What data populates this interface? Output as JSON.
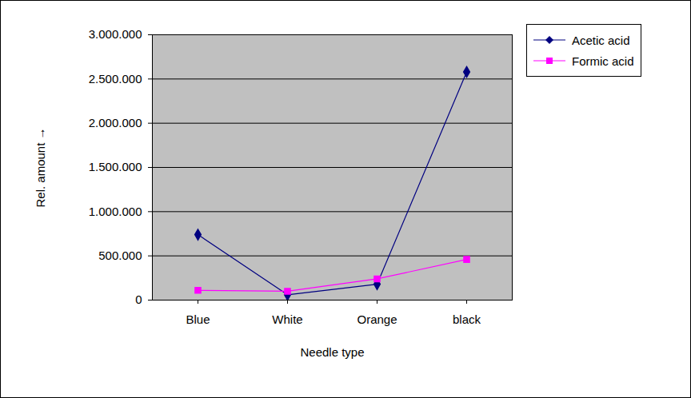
{
  "chart_data": {
    "type": "line",
    "x_label": "Needle type",
    "y_label": "Rel. amount",
    "categories": [
      "Blue",
      "White",
      "Orange",
      "black"
    ],
    "series": [
      {
        "name": "Acetic acid",
        "color": "#000080",
        "marker": "diamond",
        "values": [
          740000,
          60000,
          180000,
          2580000
        ]
      },
      {
        "name": "Formic acid",
        "color": "#ff00ff",
        "marker": "square",
        "values": [
          110000,
          100000,
          240000,
          460000
        ]
      }
    ],
    "ylim": [
      0,
      3000000
    ],
    "yticks": [
      0,
      {
        "value": 500000,
        "label": "500.000"
      },
      {
        "value": 1000000,
        "label": "1.000.000"
      },
      {
        "value": 1500000,
        "label": "1.500.000"
      },
      {
        "value": 2000000,
        "label": "2.000.000"
      },
      {
        "value": 2500000,
        "label": "2.500.000"
      },
      {
        "value": 3000000,
        "label": "3.000.000"
      }
    ],
    "grid": true,
    "legend": "right"
  }
}
